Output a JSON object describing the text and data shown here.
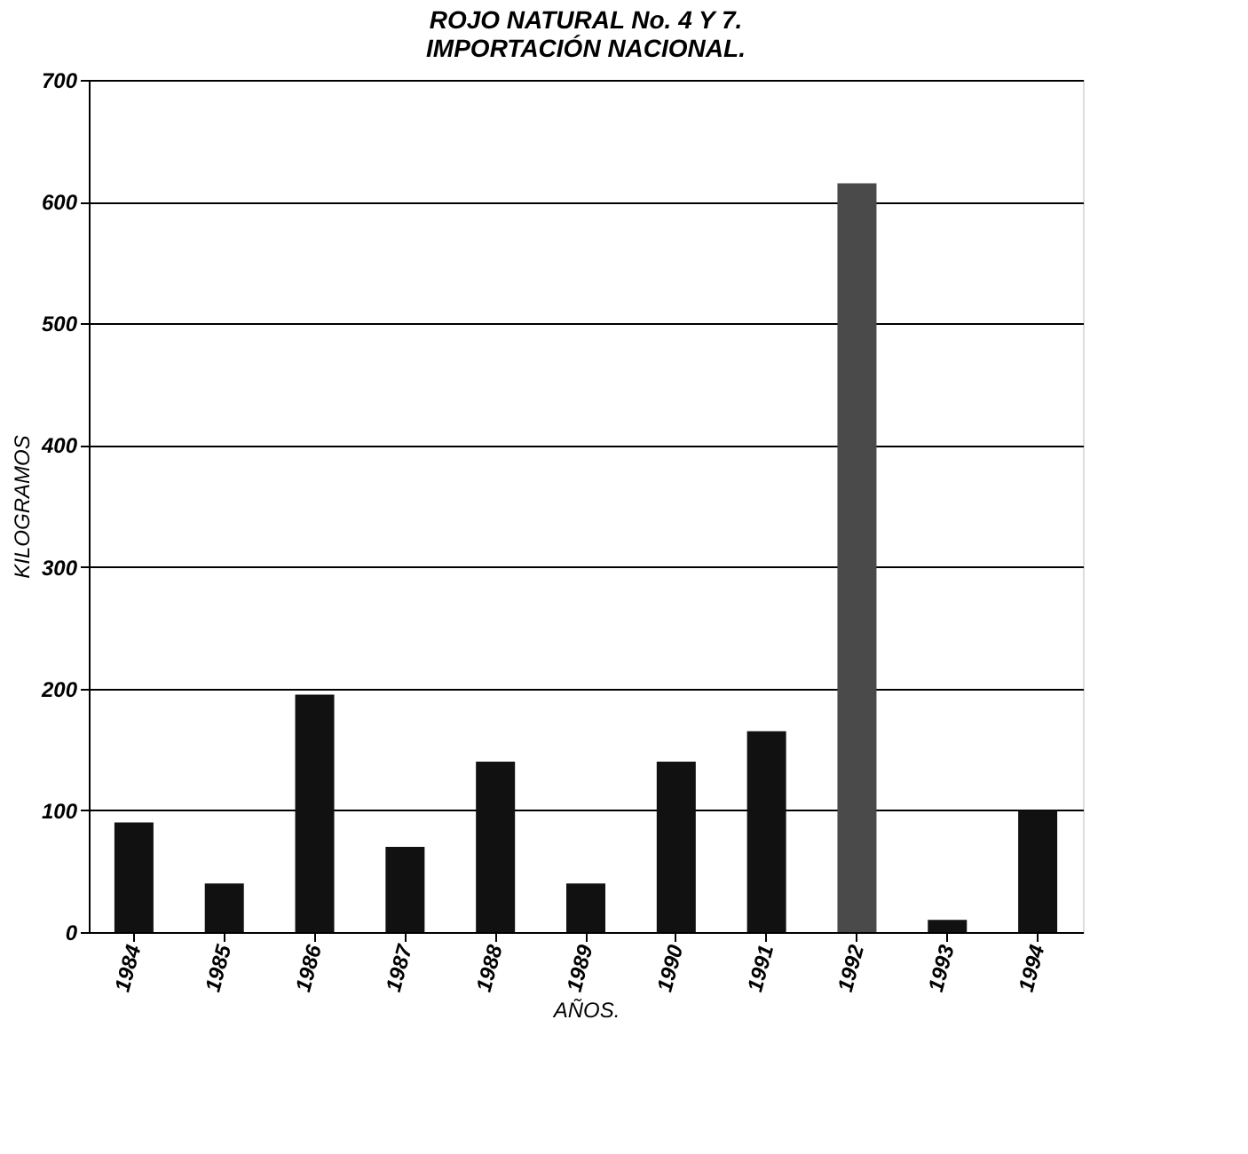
{
  "chart_data": {
    "type": "bar",
    "title": [
      "ROJO NATURAL No. 4 Y 7.",
      "IMPORTACIÓN NACIONAL."
    ],
    "xlabel": "AÑOS.",
    "ylabel": "KILOGRAMOS",
    "categories": [
      "1984",
      "1985",
      "1986",
      "1987",
      "1988",
      "1989",
      "1990",
      "1991",
      "1992",
      "1993",
      "1994"
    ],
    "values": [
      90,
      40,
      195,
      70,
      140,
      40,
      140,
      165,
      615,
      10,
      100
    ],
    "colors": [
      "#111111",
      "#111111",
      "#111111",
      "#111111",
      "#111111",
      "#111111",
      "#111111",
      "#111111",
      "#4a4a4a",
      "#111111",
      "#111111"
    ],
    "ylim": [
      0,
      700
    ],
    "yticks": [
      0,
      100,
      200,
      300,
      400,
      500,
      600,
      700
    ],
    "grid": "y",
    "legend": false
  }
}
